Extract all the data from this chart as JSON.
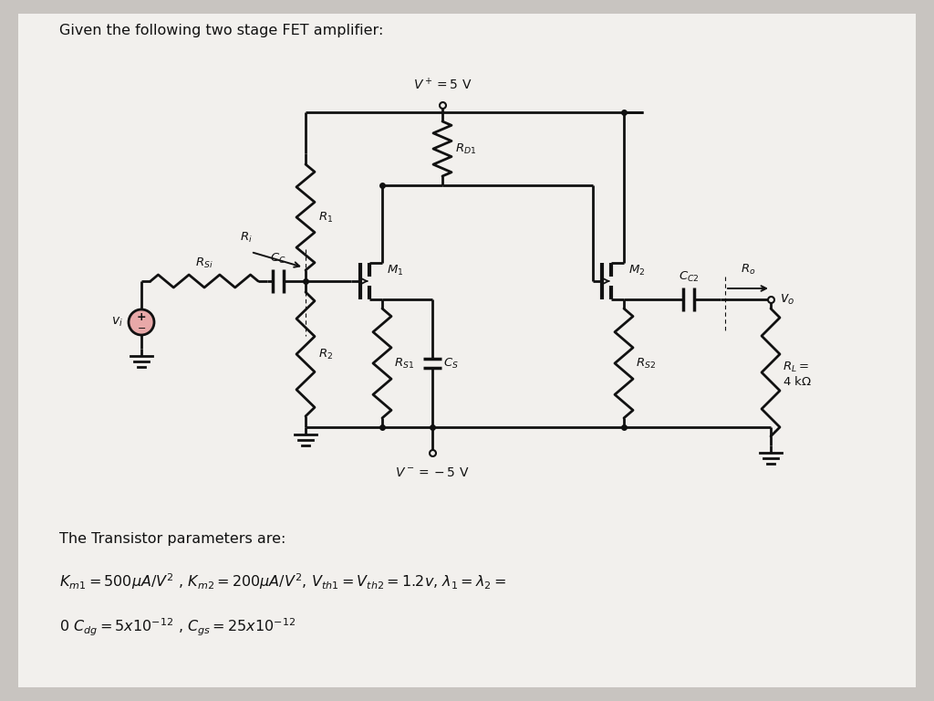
{
  "title": "Given the following two stage FET amplifier:",
  "bg_color": "#c8c4c0",
  "paper_color": "#f2f0ed",
  "line_color": "#111111",
  "line_width": 2.0,
  "transistor_params_header": "The Transistor parameters are:",
  "eq1": "$K_{m1} = 500\\mu A/V^2$ , $K_{m2} = 200\\mu A/V^2$, $V_{th1} = V_{th2} = 1.2v$, $\\lambda_1 = \\lambda_2 =$",
  "eq2": "$0$ $C_{dg} = 5x10^{-12}$ , $C_{gs} = 25x10^{-12}$",
  "vplus_label": "$V^+=5$ V",
  "vminus_label": "$V^-=-5$ V",
  "vo_label": "$v_o$",
  "vi_label": "$v_i$",
  "Ri_label": "$R_i$",
  "RSi_label": "$R_{Si}$",
  "CC_label": "$C_C$",
  "R1_label": "$R_1$",
  "R2_label": "$R_2$",
  "RD1_label": "$R_{D1}$",
  "RS1_label": "$R_{S1}$",
  "M1_label": "$M_1$",
  "M2_label": "$M_2$",
  "CC2_label": "$C_{C2}$",
  "Ro_label": "$R_o$",
  "RS2_label": "$R_{S2}$",
  "RL_label": "$R_L=$",
  "RL_val": "$4$ k$\\Omega$",
  "Cs_label": "$C_S$"
}
